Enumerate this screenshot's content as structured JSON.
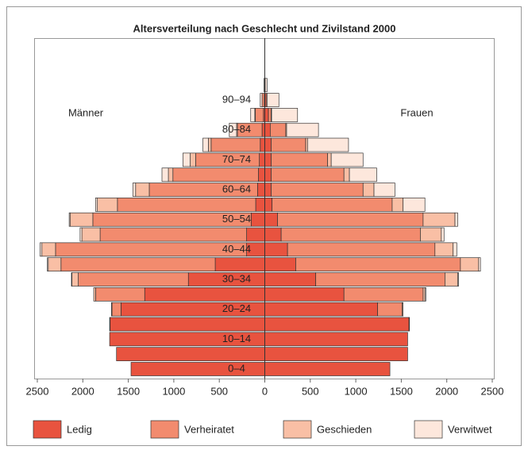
{
  "chart_data": {
    "type": "pyramid",
    "title": "Altersverteilung nach Geschlecht und Zivilstand 2000",
    "left_label": "Männer",
    "right_label": "Frauen",
    "categories": [
      "0–4",
      null,
      "10–14",
      null,
      "20–24",
      null,
      "30–34",
      null,
      "40–44",
      null,
      "50–54",
      null,
      "60–64",
      null,
      "70–74",
      null,
      "80–84",
      null,
      "90–94",
      null
    ],
    "series": [
      {
        "name": "Ledig",
        "color": "#e8533f",
        "men": [
          -1470,
          -1630,
          -1705,
          -1700,
          -1580,
          -1320,
          -840,
          -545,
          -200,
          -200,
          -150,
          -100,
          -80,
          -70,
          -60,
          -50,
          -30,
          -15,
          -5,
          0
        ],
        "women": [
          1375,
          1570,
          1570,
          1585,
          1240,
          870,
          560,
          340,
          250,
          180,
          140,
          80,
          70,
          70,
          70,
          70,
          60,
          40,
          15,
          5
        ]
      },
      {
        "name": "Verheiratet",
        "color": "#f28b6e",
        "men": [
          0,
          0,
          0,
          -5,
          -100,
          -540,
          -1210,
          -1695,
          -2100,
          -1610,
          -1740,
          -1520,
          -1190,
          -940,
          -700,
          -540,
          -270,
          -90,
          -25,
          -3
        ],
        "women": [
          0,
          0,
          0,
          5,
          270,
          870,
          1420,
          1810,
          1620,
          1530,
          1600,
          1320,
          1010,
          800,
          620,
          380,
          170,
          30,
          10,
          0
        ]
      },
      {
        "name": "Geschieden",
        "color": "#f9bfa5",
        "men": [
          0,
          0,
          0,
          0,
          -5,
          -20,
          -70,
          -140,
          -150,
          -200,
          -250,
          -220,
          -150,
          -50,
          -60,
          -30,
          -10,
          -5,
          0,
          0
        ],
        "women": [
          0,
          0,
          0,
          0,
          10,
          20,
          140,
          200,
          200,
          230,
          350,
          120,
          120,
          60,
          40,
          20,
          10,
          5,
          0,
          0
        ]
      },
      {
        "name": "Verwitwet",
        "color": "#fde7dc",
        "men": [
          0,
          0,
          0,
          0,
          0,
          0,
          -5,
          -10,
          -20,
          -20,
          -10,
          -20,
          -30,
          -70,
          -80,
          -60,
          -80,
          -45,
          -20,
          -5
        ],
        "women": [
          0,
          0,
          0,
          0,
          0,
          10,
          10,
          20,
          40,
          30,
          30,
          240,
          230,
          300,
          350,
          450,
          350,
          285,
          130,
          20
        ]
      }
    ],
    "xlim": [
      -2500,
      2500
    ],
    "xticks": [
      {
        "value": -2500,
        "label": "2500"
      },
      {
        "value": -2000,
        "label": "2000"
      },
      {
        "value": -1500,
        "label": "1500"
      },
      {
        "value": -1000,
        "label": "1000"
      },
      {
        "value": -500,
        "label": "500"
      },
      0,
      500,
      1000,
      1500,
      2000,
      2500
    ]
  }
}
